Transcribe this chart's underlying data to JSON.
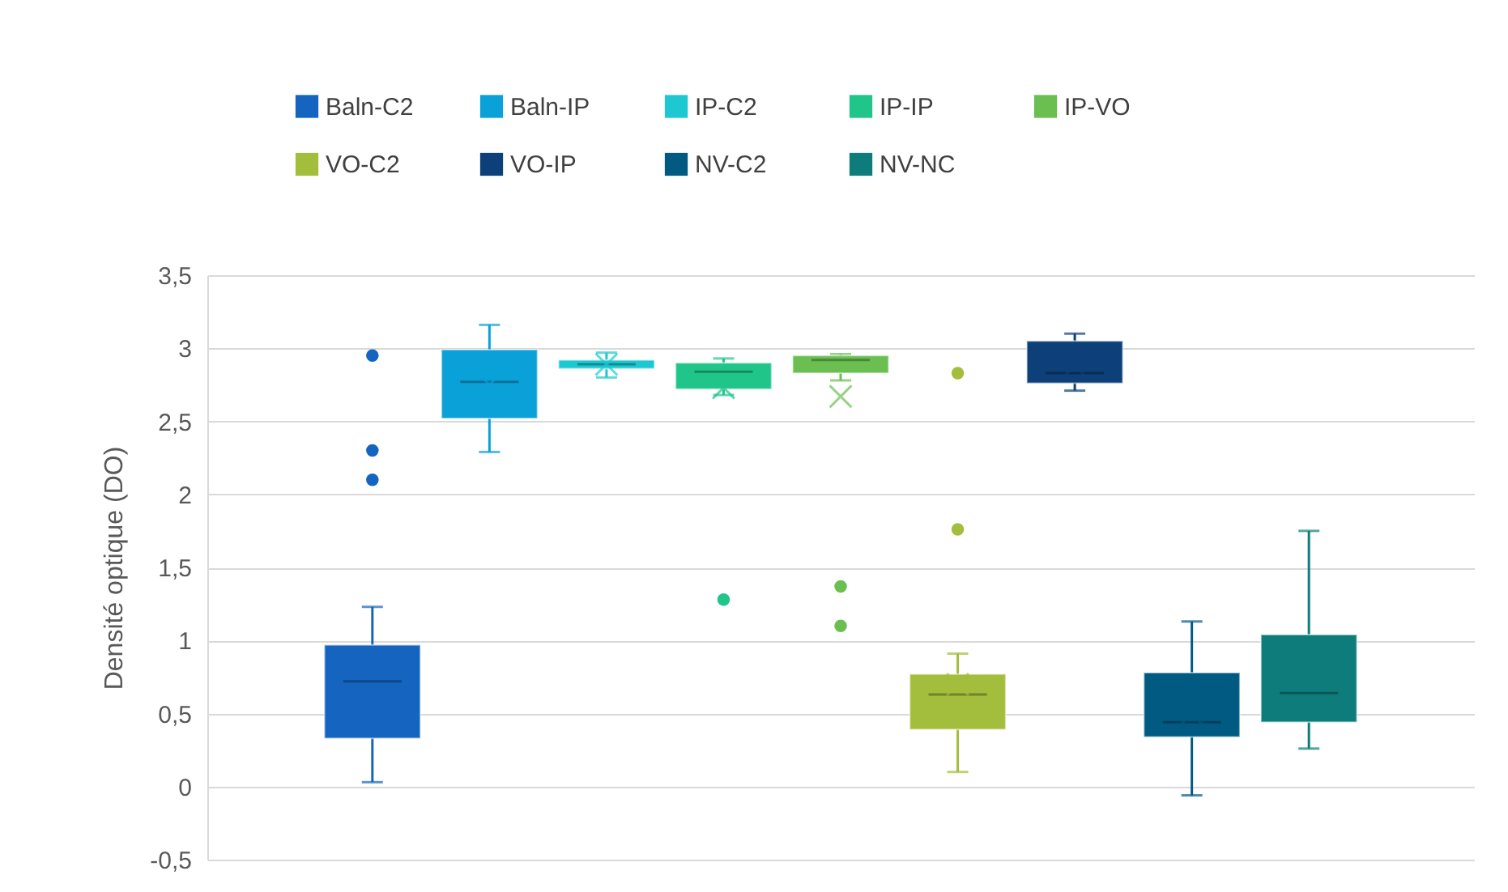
{
  "chart_data": {
    "type": "box",
    "ylabel": "Densité optique (DO)",
    "categories": [
      null
    ],
    "ylim": [
      -0.5,
      3.5
    ],
    "yticks": [
      {
        "value": -0.5,
        "label": "-0,5"
      },
      {
        "value": 0,
        "label": "0"
      },
      {
        "value": 0.5,
        "label": "0,5"
      },
      {
        "value": 1,
        "label": "1"
      },
      {
        "value": 1.5,
        "label": "1,5"
      },
      {
        "value": 2,
        "label": "2"
      },
      {
        "value": 2.5,
        "label": "2,5"
      },
      {
        "value": 3,
        "label": "3"
      },
      {
        "value": 3.5,
        "label": "3,5"
      }
    ],
    "grid": "y",
    "legend": "top",
    "series": [
      {
        "name": "Baln-C2",
        "color": "#1565c0",
        "boxes": [
          {
            "low": 0.03,
            "q1": 0.33,
            "median": 0.72,
            "q3": 0.97,
            "high": 1.23,
            "mean": 0.83,
            "outliers": [
              2.95,
              2.3,
              2.1
            ]
          }
        ]
      },
      {
        "name": "Baln-IP",
        "color": "#0aa0d8",
        "boxes": [
          {
            "low": 2.29,
            "q1": 2.52,
            "median": 2.77,
            "q3": 2.99,
            "high": 3.16,
            "mean": 2.75
          }
        ]
      },
      {
        "name": "IP-C2",
        "color": "#1ec8d2",
        "boxes": [
          {
            "low": 2.8,
            "q1": 2.86,
            "median": 2.89,
            "q3": 2.92,
            "high": 2.97,
            "mean": 2.89
          }
        ]
      },
      {
        "name": "IP-IP",
        "color": "#20c58a",
        "boxes": [
          {
            "low": 2.68,
            "q1": 2.72,
            "median": 2.84,
            "q3": 2.9,
            "high": 2.93,
            "mean": 2.73,
            "outliers": [
              1.28
            ]
          }
        ]
      },
      {
        "name": "IP-VO",
        "color": "#6abf50",
        "boxes": [
          {
            "low": 2.78,
            "q1": 2.83,
            "median": 2.92,
            "q3": 2.95,
            "high": 2.96,
            "mean": 2.67,
            "outliers": [
              1.37,
              1.1
            ]
          }
        ]
      },
      {
        "name": "VO-C2",
        "color": "#a3bd3c",
        "boxes": [
          {
            "low": 0.1,
            "q1": 0.39,
            "median": 0.63,
            "q3": 0.77,
            "high": 0.91,
            "mean": 0.7,
            "outliers": [
              2.83,
              1.76
            ]
          }
        ]
      },
      {
        "name": "VO-IP",
        "color": "#0d3f78",
        "boxes": [
          {
            "low": 2.71,
            "q1": 2.76,
            "median": 2.83,
            "q3": 3.05,
            "high": 3.1,
            "mean": 2.88
          }
        ]
      },
      {
        "name": "NV-C2",
        "color": "#005a82",
        "boxes": [
          {
            "low": -0.06,
            "q1": 0.34,
            "median": 0.44,
            "q3": 0.78,
            "high": 1.13,
            "mean": 0.5
          }
        ]
      },
      {
        "name": "NV-NC",
        "color": "#0f7c7c",
        "boxes": [
          {
            "low": 0.26,
            "q1": 0.44,
            "median": 0.64,
            "q3": 1.04,
            "high": 1.75,
            "mean": 0.78
          }
        ]
      }
    ]
  }
}
